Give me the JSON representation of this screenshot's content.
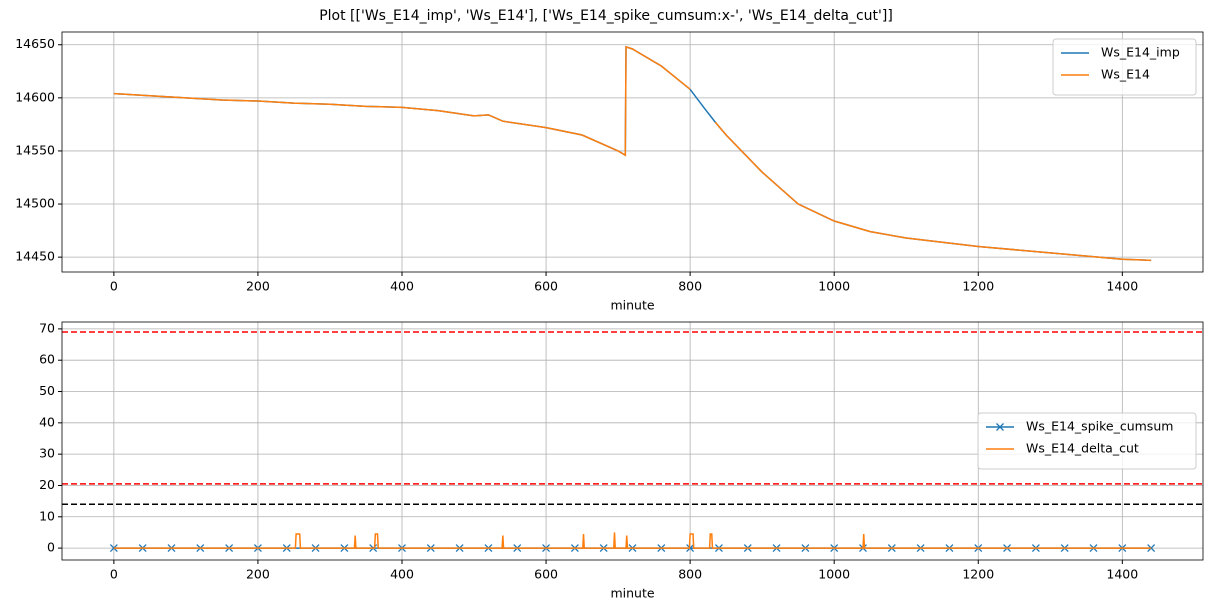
{
  "title": "Plot [['Ws_E14_imp', 'Ws_E14'], ['Ws_E14_spike_cumsum:x-', 'Ws_E14_delta_cut']]",
  "chart_data": [
    {
      "type": "line",
      "xlabel": "minute",
      "grid": true,
      "legend": "upper right",
      "xlim": [
        -72,
        1512
      ],
      "xticks": [
        0,
        200,
        400,
        600,
        800,
        1000,
        1200,
        1400
      ],
      "ylim": [
        14436,
        14662
      ],
      "yticks": [
        14450,
        14500,
        14550,
        14600,
        14650
      ],
      "x": [
        0,
        50,
        100,
        150,
        200,
        250,
        300,
        350,
        400,
        450,
        500,
        520,
        540,
        600,
        650,
        700,
        710,
        711,
        720,
        760,
        800,
        820,
        835,
        850,
        900,
        950,
        1000,
        1050,
        1100,
        1200,
        1300,
        1400,
        1440
      ],
      "series": [
        {
          "name": "Ws_E14_imp",
          "color": "#1f77b4",
          "values": [
            14604,
            14602,
            14600,
            14598,
            14597,
            14595,
            14594,
            14592,
            14591,
            14588,
            14583,
            14584,
            14578,
            14572,
            14565,
            14550,
            14546,
            14648,
            14646,
            14630,
            14608,
            14590,
            14577,
            14565,
            14530,
            14500,
            14484,
            14474,
            14468,
            14460,
            14454,
            14448,
            14447
          ]
        },
        {
          "name": "Ws_E14",
          "color": "#ff7f0e",
          "values": [
            14604,
            14602,
            14600,
            14598,
            14597,
            14595,
            14594,
            14592,
            14591,
            14588,
            14583,
            14584,
            14578,
            14572,
            14565,
            14550,
            14546,
            14648,
            14646,
            14630,
            14608,
            null,
            14577,
            14565,
            14530,
            14500,
            14484,
            14474,
            14468,
            14460,
            14454,
            14448,
            14447
          ]
        }
      ]
    },
    {
      "type": "line",
      "xlabel": "minute",
      "grid": true,
      "legend": "center right",
      "xlim": [
        -72,
        1512
      ],
      "xticks": [
        0,
        200,
        400,
        600,
        800,
        1000,
        1200,
        1400
      ],
      "ylim": [
        -3.8,
        72.2
      ],
      "yticks": [
        0,
        10,
        20,
        30,
        40,
        50,
        60,
        70
      ],
      "hlines": [
        {
          "value": 69,
          "color": "red"
        },
        {
          "value": 20.5,
          "color": "red"
        },
        {
          "value": 14,
          "color": "black"
        }
      ],
      "series": [
        {
          "name": "Ws_E14_spike_cumsum",
          "color": "#1f77b4",
          "marker": "x",
          "x": [
            0,
            40,
            80,
            120,
            160,
            200,
            240,
            280,
            320,
            360,
            400,
            440,
            480,
            520,
            560,
            600,
            640,
            680,
            720,
            760,
            800,
            840,
            880,
            920,
            960,
            1000,
            1040,
            1080,
            1120,
            1160,
            1200,
            1240,
            1280,
            1320,
            1360,
            1400,
            1440
          ],
          "values": [
            0,
            0,
            0,
            0,
            0,
            0,
            0,
            0,
            0,
            0,
            0,
            0,
            0,
            0,
            0,
            0,
            0,
            0,
            0,
            0,
            0,
            0,
            0,
            0,
            0,
            0,
            0,
            0,
            0,
            0,
            0,
            0,
            0,
            0,
            0,
            0,
            0
          ]
        },
        {
          "name": "Ws_E14_delta_cut",
          "color": "#ff7f0e",
          "x": [
            0,
            252,
            253,
            258,
            259,
            334,
            335,
            336,
            362,
            363,
            366,
            367,
            539,
            540,
            541,
            651,
            652,
            653,
            694,
            695,
            696,
            711,
            712,
            713,
            799,
            800,
            804,
            805,
            827,
            828,
            830,
            831,
            1040,
            1041,
            1042,
            1440
          ],
          "values": [
            0,
            0,
            4.5,
            4.5,
            0,
            0,
            4,
            0,
            0,
            4.5,
            4.5,
            0,
            0,
            4,
            0,
            0,
            4.5,
            0,
            0,
            5,
            0,
            0,
            4,
            0,
            0,
            4.5,
            4.5,
            0,
            0,
            4.5,
            4.5,
            0,
            0,
            4.5,
            0,
            0
          ]
        }
      ]
    }
  ]
}
